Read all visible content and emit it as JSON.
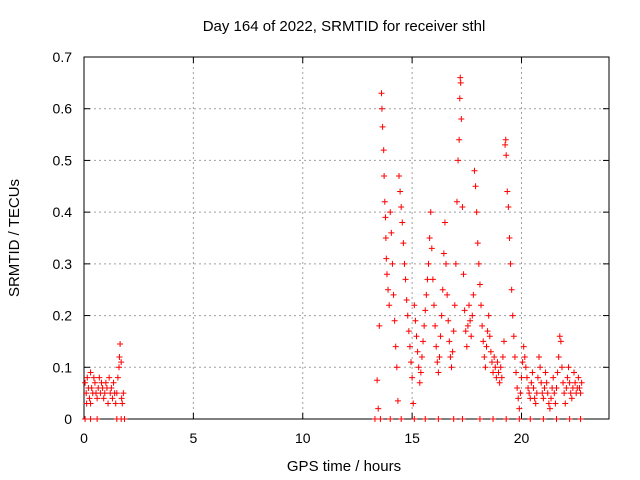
{
  "chart_data": {
    "type": "scatter",
    "title": "Day 164 of 2022, SRMTID for receiver sthl",
    "xlabel": "GPS time / hours",
    "ylabel": "SRMTID / TECUs",
    "xlim": [
      0,
      24
    ],
    "ylim": [
      0,
      0.7
    ],
    "xticks": [
      0,
      5,
      10,
      15,
      20
    ],
    "yticks": [
      0,
      0.1,
      0.2,
      0.3,
      0.4,
      0.5,
      0.6,
      0.7
    ],
    "xtick_labels": [
      "0",
      "5",
      "10",
      "15",
      "20"
    ],
    "ytick_labels": [
      "0",
      "0.1",
      "0.2",
      "0.3",
      "0.4",
      "0.5",
      "0.6",
      "0.7"
    ],
    "grid": true,
    "marker": "+",
    "color": "#ff0000",
    "series": [
      {
        "name": "sthl",
        "points": [
          [
            0.05,
            0.07
          ],
          [
            0.1,
            0.05
          ],
          [
            0.15,
            0.08
          ],
          [
            0.2,
            0.06
          ],
          [
            0.25,
            0.04
          ],
          [
            0.3,
            0.09
          ],
          [
            0.35,
            0.06
          ],
          [
            0.4,
            0.05
          ],
          [
            0.45,
            0.08
          ],
          [
            0.5,
            0.07
          ],
          [
            0.55,
            0.05
          ],
          [
            0.6,
            0.04
          ],
          [
            0.65,
            0.06
          ],
          [
            0.7,
            0.08
          ],
          [
            0.75,
            0.05
          ],
          [
            0.8,
            0.07
          ],
          [
            0.85,
            0.06
          ],
          [
            0.9,
            0.04
          ],
          [
            0.95,
            0.05
          ],
          [
            1.0,
            0.07
          ],
          [
            1.05,
            0.06
          ],
          [
            1.1,
            0.03
          ],
          [
            1.15,
            0.08
          ],
          [
            1.2,
            0.05
          ],
          [
            1.25,
            0.06
          ],
          [
            1.3,
            0.04
          ],
          [
            1.35,
            0.07
          ],
          [
            1.4,
            0.05
          ],
          [
            1.45,
            0.03
          ],
          [
            1.5,
            0.05
          ],
          [
            1.55,
            0.08
          ],
          [
            1.6,
            0.1
          ],
          [
            1.62,
            0.12
          ],
          [
            1.65,
            0.145
          ],
          [
            1.7,
            0.11
          ],
          [
            1.72,
            0.04
          ],
          [
            1.75,
            0.03
          ],
          [
            1.8,
            0.05
          ],
          [
            0.12,
            0.03
          ],
          [
            0.3,
            0.03
          ],
          [
            0.05,
            0.0
          ],
          [
            0.3,
            0.0
          ],
          [
            0.6,
            0.0
          ],
          [
            1.5,
            0.0
          ],
          [
            1.7,
            0.0
          ],
          [
            1.85,
            0.0
          ],
          [
            13.3,
            0.0
          ],
          [
            13.4,
            0.075
          ],
          [
            13.45,
            0.02
          ],
          [
            13.5,
            0.18
          ],
          [
            13.55,
            0.0
          ],
          [
            13.6,
            0.63
          ],
          [
            13.62,
            0.6
          ],
          [
            13.65,
            0.565
          ],
          [
            13.7,
            0.52
          ],
          [
            13.72,
            0.47
          ],
          [
            13.75,
            0.42
          ],
          [
            13.78,
            0.39
          ],
          [
            13.8,
            0.35
          ],
          [
            13.82,
            0.31
          ],
          [
            13.85,
            0.28
          ],
          [
            13.9,
            0.25
          ],
          [
            13.95,
            0.22
          ],
          [
            14.0,
            0.4
          ],
          [
            14.05,
            0.36
          ],
          [
            14.1,
            0.3
          ],
          [
            14.15,
            0.24
          ],
          [
            14.2,
            0.19
          ],
          [
            14.25,
            0.14
          ],
          [
            14.3,
            0.1
          ],
          [
            14.35,
            0.035
          ],
          [
            14.4,
            0.47
          ],
          [
            14.45,
            0.44
          ],
          [
            14.5,
            0.41
          ],
          [
            14.55,
            0.38
          ],
          [
            14.6,
            0.34
          ],
          [
            14.65,
            0.3
          ],
          [
            14.7,
            0.27
          ],
          [
            14.75,
            0.23
          ],
          [
            14.8,
            0.2
          ],
          [
            14.85,
            0.17
          ],
          [
            14.9,
            0.14
          ],
          [
            14.95,
            0.11
          ],
          [
            15.0,
            0.08
          ],
          [
            15.05,
            0.03
          ],
          [
            15.1,
            0.22
          ],
          [
            15.15,
            0.19
          ],
          [
            15.2,
            0.16
          ],
          [
            15.25,
            0.13
          ],
          [
            15.3,
            0.1
          ],
          [
            15.35,
            0.07
          ],
          [
            15.4,
            0.09
          ],
          [
            15.45,
            0.12
          ],
          [
            15.5,
            0.15
          ],
          [
            15.55,
            0.18
          ],
          [
            15.6,
            0.21
          ],
          [
            15.65,
            0.24
          ],
          [
            15.7,
            0.27
          ],
          [
            15.75,
            0.3
          ],
          [
            15.8,
            0.35
          ],
          [
            15.85,
            0.4
          ],
          [
            15.9,
            0.33
          ],
          [
            15.95,
            0.27
          ],
          [
            16.0,
            0.22
          ],
          [
            16.05,
            0.18
          ],
          [
            16.1,
            0.14
          ],
          [
            16.15,
            0.11
          ],
          [
            16.2,
            0.09
          ],
          [
            16.25,
            0.12
          ],
          [
            16.3,
            0.16
          ],
          [
            16.35,
            0.2
          ],
          [
            16.4,
            0.25
          ],
          [
            16.45,
            0.32
          ],
          [
            16.5,
            0.38
          ],
          [
            16.55,
            0.3
          ],
          [
            16.6,
            0.24
          ],
          [
            16.65,
            0.19
          ],
          [
            16.7,
            0.15
          ],
          [
            16.75,
            0.12
          ],
          [
            16.8,
            0.1
          ],
          [
            16.85,
            0.13
          ],
          [
            16.9,
            0.17
          ],
          [
            16.95,
            0.22
          ],
          [
            17.0,
            0.3
          ],
          [
            17.05,
            0.42
          ],
          [
            17.1,
            0.5
          ],
          [
            17.15,
            0.54
          ],
          [
            17.18,
            0.62
          ],
          [
            17.2,
            0.66
          ],
          [
            17.22,
            0.65
          ],
          [
            17.25,
            0.58
          ],
          [
            17.3,
            0.41
          ],
          [
            17.35,
            0.28
          ],
          [
            17.4,
            0.21
          ],
          [
            17.45,
            0.17
          ],
          [
            17.5,
            0.14
          ],
          [
            17.55,
            0.18
          ],
          [
            17.6,
            0.22
          ],
          [
            17.65,
            0.19
          ],
          [
            17.7,
            0.16
          ],
          [
            17.75,
            0.2
          ],
          [
            17.8,
            0.24
          ],
          [
            17.85,
            0.48
          ],
          [
            17.9,
            0.45
          ],
          [
            17.95,
            0.4
          ],
          [
            18.0,
            0.34
          ],
          [
            18.05,
            0.3
          ],
          [
            18.1,
            0.26
          ],
          [
            18.15,
            0.22
          ],
          [
            18.2,
            0.18
          ],
          [
            18.25,
            0.15
          ],
          [
            18.3,
            0.12
          ],
          [
            18.35,
            0.1
          ],
          [
            18.4,
            0.14
          ],
          [
            18.45,
            0.17
          ],
          [
            18.5,
            0.2
          ],
          [
            18.55,
            0.16
          ],
          [
            18.6,
            0.13
          ],
          [
            18.65,
            0.11
          ],
          [
            18.7,
            0.09
          ],
          [
            18.75,
            0.12
          ],
          [
            18.8,
            0.1
          ],
          [
            18.85,
            0.08
          ],
          [
            18.9,
            0.11
          ],
          [
            18.95,
            0.09
          ],
          [
            19.0,
            0.07
          ],
          [
            19.05,
            0.1
          ],
          [
            19.1,
            0.08
          ],
          [
            19.15,
            0.12
          ],
          [
            19.2,
            0.15
          ],
          [
            19.25,
            0.53
          ],
          [
            19.28,
            0.54
          ],
          [
            19.3,
            0.51
          ],
          [
            19.35,
            0.44
          ],
          [
            19.4,
            0.41
          ],
          [
            19.45,
            0.35
          ],
          [
            19.5,
            0.3
          ],
          [
            19.55,
            0.25
          ],
          [
            19.6,
            0.2
          ],
          [
            19.65,
            0.16
          ],
          [
            19.7,
            0.12
          ],
          [
            19.75,
            0.09
          ],
          [
            19.8,
            0.06
          ],
          [
            19.85,
            0.04
          ],
          [
            19.9,
            0.02
          ],
          [
            19.95,
            0.05
          ],
          [
            20.0,
            0.08
          ],
          [
            20.05,
            0.11
          ],
          [
            20.1,
            0.14
          ],
          [
            20.15,
            0.12
          ],
          [
            20.2,
            0.1
          ],
          [
            20.25,
            0.08
          ],
          [
            20.3,
            0.06
          ],
          [
            20.35,
            0.05
          ],
          [
            20.4,
            0.04
          ],
          [
            20.45,
            0.07
          ],
          [
            20.5,
            0.09
          ],
          [
            20.55,
            0.06
          ],
          [
            20.6,
            0.04
          ],
          [
            20.65,
            0.03
          ],
          [
            20.7,
            0.05
          ],
          [
            20.75,
            0.08
          ],
          [
            20.8,
            0.12
          ],
          [
            20.85,
            0.1
          ],
          [
            20.9,
            0.07
          ],
          [
            20.95,
            0.05
          ],
          [
            21.0,
            0.04
          ],
          [
            21.05,
            0.06
          ],
          [
            21.1,
            0.09
          ],
          [
            21.15,
            0.07
          ],
          [
            21.2,
            0.05
          ],
          [
            21.25,
            0.03
          ],
          [
            21.3,
            0.02
          ],
          [
            21.35,
            0.04
          ],
          [
            21.4,
            0.06
          ],
          [
            21.45,
            0.08
          ],
          [
            21.5,
            0.05
          ],
          [
            21.55,
            0.03
          ],
          [
            21.6,
            0.06
          ],
          [
            21.65,
            0.09
          ],
          [
            21.7,
            0.12
          ],
          [
            21.75,
            0.16
          ],
          [
            21.8,
            0.15
          ],
          [
            21.85,
            0.1
          ],
          [
            21.9,
            0.07
          ],
          [
            21.95,
            0.05
          ],
          [
            22.0,
            0.03
          ],
          [
            22.05,
            0.06
          ],
          [
            22.1,
            0.08
          ],
          [
            22.15,
            0.1
          ],
          [
            22.2,
            0.07
          ],
          [
            22.25,
            0.05
          ],
          [
            22.3,
            0.04
          ],
          [
            22.35,
            0.06
          ],
          [
            22.4,
            0.09
          ],
          [
            22.45,
            0.07
          ],
          [
            22.5,
            0.05
          ],
          [
            22.55,
            0.06
          ],
          [
            22.6,
            0.08
          ],
          [
            22.65,
            0.06
          ],
          [
            22.7,
            0.05
          ],
          [
            22.75,
            0.07
          ],
          [
            14.0,
            0.0
          ],
          [
            14.5,
            0.0
          ],
          [
            15.1,
            0.0
          ],
          [
            15.6,
            0.0
          ],
          [
            16.2,
            0.0
          ],
          [
            16.9,
            0.0
          ],
          [
            17.3,
            0.0
          ],
          [
            18.1,
            0.0
          ],
          [
            18.7,
            0.0
          ],
          [
            19.3,
            0.0
          ],
          [
            19.9,
            0.0
          ],
          [
            20.4,
            0.0
          ],
          [
            21.0,
            0.0
          ],
          [
            21.6,
            0.0
          ],
          [
            22.2,
            0.0
          ],
          [
            22.7,
            0.0
          ]
        ]
      }
    ]
  }
}
